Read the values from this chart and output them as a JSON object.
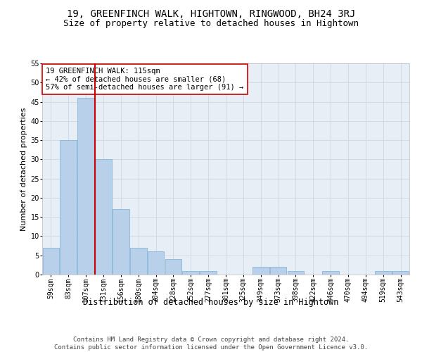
{
  "title1": "19, GREENFINCH WALK, HIGHTOWN, RINGWOOD, BH24 3RJ",
  "title2": "Size of property relative to detached houses in Hightown",
  "xlabel": "Distribution of detached houses by size in Hightown",
  "ylabel": "Number of detached properties",
  "categories": [
    "59sqm",
    "83sqm",
    "107sqm",
    "131sqm",
    "156sqm",
    "180sqm",
    "204sqm",
    "228sqm",
    "252sqm",
    "277sqm",
    "301sqm",
    "325sqm",
    "349sqm",
    "373sqm",
    "398sqm",
    "422sqm",
    "446sqm",
    "470sqm",
    "494sqm",
    "519sqm",
    "543sqm"
  ],
  "values": [
    7,
    35,
    46,
    30,
    17,
    7,
    6,
    4,
    1,
    1,
    0,
    0,
    2,
    2,
    1,
    0,
    1,
    0,
    0,
    1,
    1
  ],
  "bar_color": "#b8d0ea",
  "bar_edge_color": "#7aafd4",
  "grid_color": "#ccd8e8",
  "bg_color": "#e8eef6",
  "red_line_x": 2.5,
  "red_line_color": "#cc0000",
  "annotation_line1": "19 GREENFINCH WALK: 115sqm",
  "annotation_line2": "← 42% of detached houses are smaller (68)",
  "annotation_line3": "57% of semi-detached houses are larger (91) →",
  "annotation_box_color": "#ffffff",
  "annotation_box_edge": "#cc0000",
  "ylim": [
    0,
    55
  ],
  "yticks": [
    0,
    5,
    10,
    15,
    20,
    25,
    30,
    35,
    40,
    45,
    50,
    55
  ],
  "footer_line1": "Contains HM Land Registry data © Crown copyright and database right 2024.",
  "footer_line2": "Contains public sector information licensed under the Open Government Licence v3.0.",
  "title1_fontsize": 10,
  "title2_fontsize": 9,
  "xlabel_fontsize": 8.5,
  "ylabel_fontsize": 8,
  "tick_fontsize": 7,
  "annotation_fontsize": 7.5,
  "footer_fontsize": 6.5
}
